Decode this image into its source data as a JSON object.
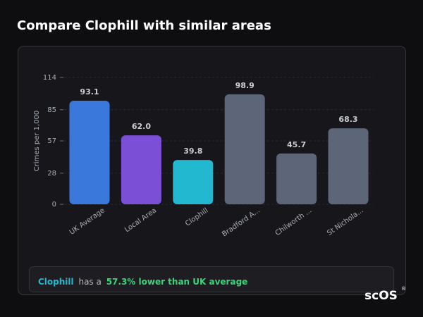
{
  "header": {
    "title": "Compare Clophill with similar areas"
  },
  "chart_data": {
    "type": "bar",
    "y_label": "Crimes per 1,000",
    "categories": [
      "UK Average",
      "Local Area",
      "Clophill",
      "Bradford A...",
      "Chilworth ...",
      "St Nichola..."
    ],
    "values": [
      93.1,
      62.0,
      39.8,
      98.9,
      45.7,
      68.3
    ],
    "value_labels": [
      "93.1",
      "62.0",
      "39.8",
      "98.9",
      "45.7",
      "68.3"
    ],
    "colors": [
      "#3b78dc",
      "#7b4fd6",
      "#22b8d0",
      "#5c6678",
      "#5c6678",
      "#5c6678"
    ],
    "ylim": [
      0,
      114
    ],
    "yticks": [
      0,
      28,
      57,
      85,
      114
    ],
    "grid": true
  },
  "summary": {
    "area": "Clophill",
    "text": "has a",
    "highlight": "57.3% lower than UK average"
  },
  "logo": {
    "text": "scOS",
    "mark": "®"
  }
}
